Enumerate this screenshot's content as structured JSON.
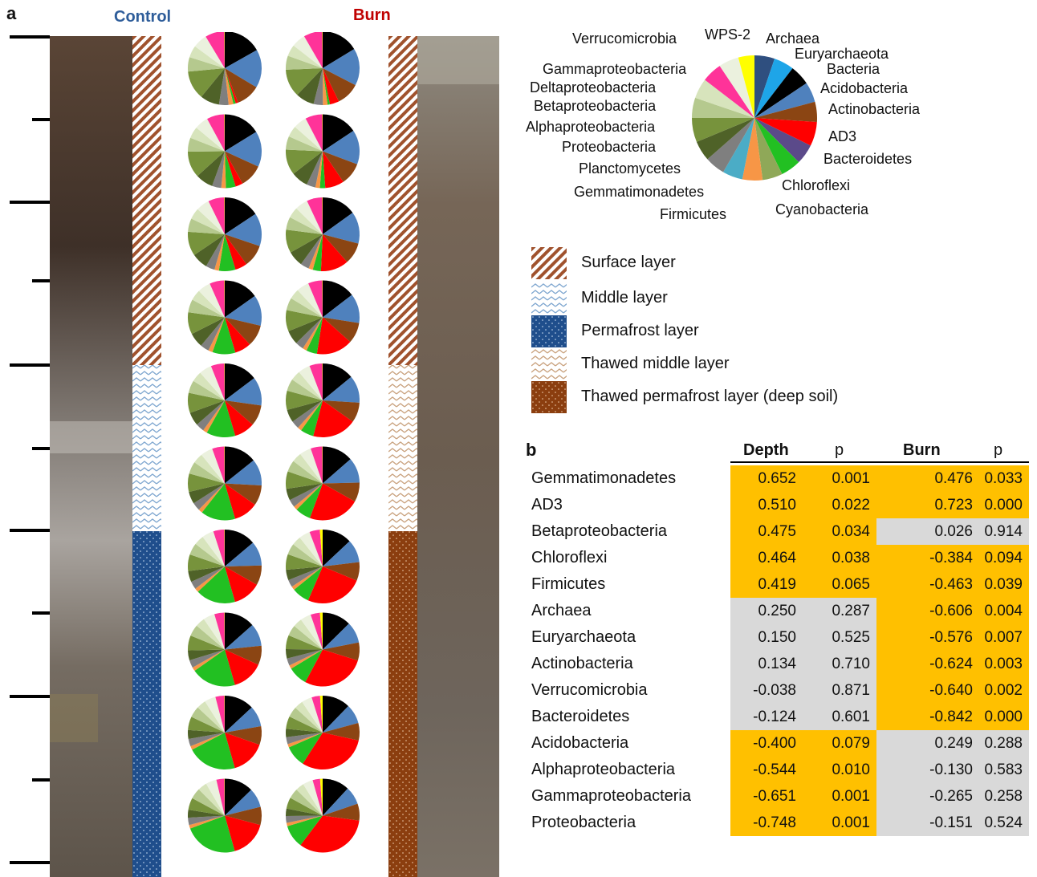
{
  "figure": {
    "panel_a_label": "a",
    "panel_b_label": "b",
    "control_title": "Control",
    "burn_title": "Burn"
  },
  "colors": {
    "control_title": "#2E5D9A",
    "burn_title": "#C00000",
    "significant_cell": "#FFC000",
    "nonsignificant_cell": "#D9D9D9"
  },
  "taxa_key": {
    "labels": [
      "Archaea",
      "Euryarchaeota",
      "Bacteria",
      "Acidobacteria",
      "Actinobacteria",
      "AD3",
      "Bacteroidetes",
      "Chloroflexi",
      "Cyanobacteria",
      "Firmicutes",
      "Gemmatimonadetes",
      "Planctomycetes",
      "Proteobacteria",
      "Alphaproteobacteria",
      "Betaproteobacteria",
      "Deltaproteobacteria",
      "Gammaproteobacteria",
      "Verrucomicrobia",
      "WPS-2"
    ],
    "colors": [
      "#2F4F7F",
      "#1EA5E8",
      "#000000",
      "#4F81BD",
      "#8B4513",
      "#FF0000",
      "#5B4A8A",
      "#22C022",
      "#8FA858",
      "#F79646",
      "#4BACC6",
      "#7F7F7F",
      "#4F6228",
      "#77933C",
      "#B5C98E",
      "#D7E4BC",
      "#FF3399",
      "#EBF1DE",
      "#FFFF00"
    ]
  },
  "legend": {
    "items": [
      {
        "label": "Surface layer",
        "pattern": "diagonal-stripes"
      },
      {
        "label": "Middle layer",
        "pattern": "zigzag"
      },
      {
        "label": "Permafrost layer",
        "pattern": "dots-on-blue"
      },
      {
        "label": "Thawed middle layer",
        "pattern": "zigzag-tan"
      },
      {
        "label": "Thawed permafrost layer (deep soil)",
        "pattern": "dots-on-brown"
      }
    ]
  },
  "table": {
    "headers": {
      "depth": "Depth",
      "p1": "p",
      "burn": "Burn",
      "p2": "p"
    },
    "rows": [
      {
        "name": "Gemmatimonadetes",
        "depth": "0.652",
        "p1": "0.001",
        "burn": "0.476",
        "p2": "0.033",
        "depth_sig": true,
        "burn_sig": true
      },
      {
        "name": "AD3",
        "depth": "0.510",
        "p1": "0.022",
        "burn": "0.723",
        "p2": "0.000",
        "depth_sig": true,
        "burn_sig": true
      },
      {
        "name": "Betaproteobacteria",
        "depth": "0.475",
        "p1": "0.034",
        "burn": "0.026",
        "p2": "0.914",
        "depth_sig": true,
        "burn_sig": false
      },
      {
        "name": "Chloroflexi",
        "depth": "0.464",
        "p1": "0.038",
        "burn": "-0.384",
        "p2": "0.094",
        "depth_sig": true,
        "burn_sig": true
      },
      {
        "name": "Firmicutes",
        "depth": "0.419",
        "p1": "0.065",
        "burn": "-0.463",
        "p2": "0.039",
        "depth_sig": true,
        "burn_sig": true
      },
      {
        "name": "Archaea",
        "depth": "0.250",
        "p1": "0.287",
        "burn": "-0.606",
        "p2": "0.004",
        "depth_sig": false,
        "burn_sig": true
      },
      {
        "name": "Euryarchaeota",
        "depth": "0.150",
        "p1": "0.525",
        "burn": "-0.576",
        "p2": "0.007",
        "depth_sig": false,
        "burn_sig": true
      },
      {
        "name": "Actinobacteria",
        "depth": "0.134",
        "p1": "0.710",
        "burn": "-0.624",
        "p2": "0.003",
        "depth_sig": false,
        "burn_sig": true
      },
      {
        "name": "Verrucomicrobia",
        "depth": "-0.038",
        "p1": "0.871",
        "burn": "-0.640",
        "p2": "0.002",
        "depth_sig": false,
        "burn_sig": true
      },
      {
        "name": "Bacteroidetes",
        "depth": "-0.124",
        "p1": "0.601",
        "burn": "-0.842",
        "p2": "0.000",
        "depth_sig": false,
        "burn_sig": true
      },
      {
        "name": "Acidobacteria",
        "depth": "-0.400",
        "p1": "0.079",
        "burn": "0.249",
        "p2": "0.288",
        "depth_sig": true,
        "burn_sig": false
      },
      {
        "name": "Alphaproteobacteria",
        "depth": "-0.544",
        "p1": "0.010",
        "burn": "-0.130",
        "p2": "0.583",
        "depth_sig": true,
        "burn_sig": false
      },
      {
        "name": "Gammaproteobacteria",
        "depth": "-0.651",
        "p1": "0.001",
        "burn": "-0.265",
        "p2": "0.258",
        "depth_sig": true,
        "burn_sig": false
      },
      {
        "name": "Proteobacteria",
        "depth": "-0.748",
        "p1": "0.001",
        "burn": "-0.151",
        "p2": "0.524",
        "depth_sig": true,
        "burn_sig": false
      }
    ]
  }
}
